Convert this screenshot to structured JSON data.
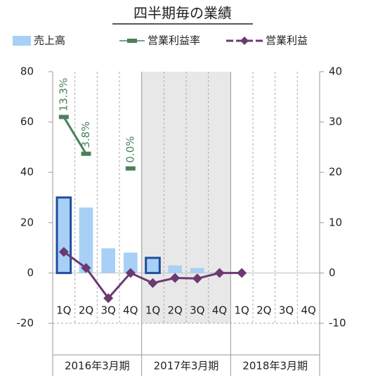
{
  "chart_data": {
    "type": "bar",
    "title": "四半期毎の業績",
    "categories": [
      "1Q",
      "2Q",
      "3Q",
      "4Q",
      "1Q",
      "2Q",
      "3Q",
      "4Q",
      "1Q",
      "2Q",
      "3Q",
      "4Q"
    ],
    "group_labels": [
      "2016年3月期",
      "2017年3月期",
      "2018年3月期"
    ],
    "shaded_group": 1,
    "ylim": [
      -20,
      80
    ],
    "yticks": [
      -20,
      0,
      20,
      40,
      60,
      80
    ],
    "y2lim": [
      -10,
      40
    ],
    "y2ticks": [
      -10,
      0,
      10,
      20,
      30,
      40
    ],
    "y3lim": [
      -40,
      25
    ],
    "series": [
      {
        "name": "売上高",
        "type": "bar",
        "color": "#a8d0f7",
        "highlight_color": "#1f4e9c",
        "highlighted": [
          0,
          4
        ],
        "values": [
          30,
          26,
          9.8,
          8.1,
          6,
          3,
          2,
          0.3,
          null,
          null,
          null,
          null
        ]
      },
      {
        "name": "営業利益率",
        "type": "line",
        "axis": "y3",
        "color": "#4b8058",
        "values": [
          13.3,
          3.8,
          null,
          0.0,
          null,
          null,
          null,
          null,
          null,
          null,
          null,
          null
        ],
        "value_labels": [
          "13.3%",
          "3.8%",
          null,
          "0.0%",
          null,
          null,
          null,
          null,
          null,
          null,
          null,
          null
        ]
      },
      {
        "name": "営業利益",
        "type": "line",
        "axis": "y2",
        "color": "#6b3a70",
        "marker": "diamond",
        "values": [
          4.2,
          1.0,
          -5.0,
          0,
          -2.0,
          -1.0,
          -1.1,
          0,
          0,
          null,
          null,
          null
        ]
      }
    ]
  }
}
